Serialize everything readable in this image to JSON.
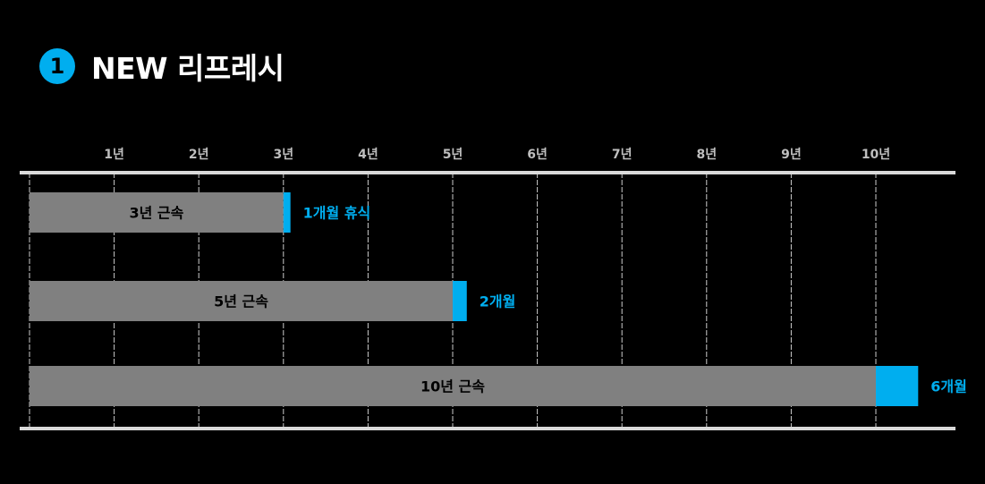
{
  "header": {
    "badge": "1",
    "title": "NEW 리프레시"
  },
  "colors": {
    "background": "#000000",
    "bar": "#808080",
    "accent": "#00aeef",
    "axis_line": "#d9d9d9",
    "grid": "#cccccc",
    "tick_text": "#bfbfbf"
  },
  "chart_data": {
    "type": "bar",
    "orientation": "horizontal",
    "stacked": true,
    "x_unit": "years",
    "xlim": [
      0,
      11
    ],
    "x_ticks": [
      1,
      2,
      3,
      4,
      5,
      6,
      7,
      8,
      9,
      10
    ],
    "x_tick_labels": [
      "1년",
      "2년",
      "3년",
      "4년",
      "5년",
      "6년",
      "7년",
      "8년",
      "9년",
      "10년"
    ],
    "grid": true,
    "rows": [
      {
        "label": "3년 근속",
        "service_years": 3,
        "leave_months": 1,
        "leave_label": "1개월 휴식"
      },
      {
        "label": "5년 근속",
        "service_years": 5,
        "leave_months": 2,
        "leave_label": "2개월"
      },
      {
        "label": "10년 근속",
        "service_years": 10,
        "leave_months": 6,
        "leave_label": "6개월"
      }
    ]
  }
}
